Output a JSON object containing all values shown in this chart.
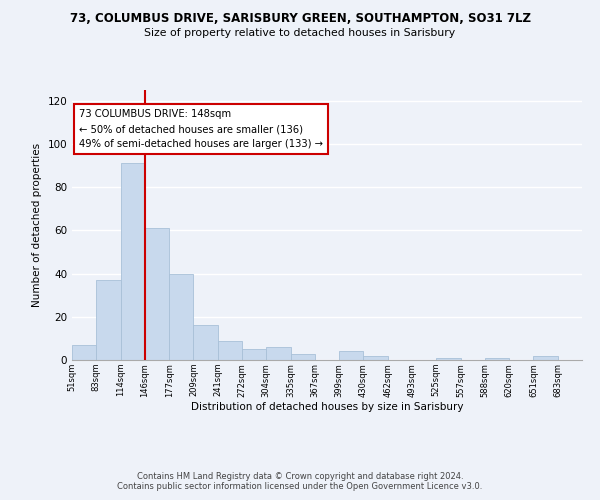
{
  "title": "73, COLUMBUS DRIVE, SARISBURY GREEN, SOUTHAMPTON, SO31 7LZ",
  "subtitle": "Size of property relative to detached houses in Sarisbury",
  "xlabel": "Distribution of detached houses by size in Sarisbury",
  "ylabel": "Number of detached properties",
  "bar_color": "#c8d9ed",
  "bar_edge_color": "#a8c0d8",
  "vline_color": "#cc0000",
  "vline_x": 3,
  "annotation_title": "73 COLUMBUS DRIVE: 148sqm",
  "annotation_line1": "← 50% of detached houses are smaller (136)",
  "annotation_line2": "49% of semi-detached houses are larger (133) →",
  "annotation_box_color": "#ffffff",
  "annotation_box_edge": "#cc0000",
  "bin_labels": [
    "51sqm",
    "83sqm",
    "114sqm",
    "146sqm",
    "177sqm",
    "209sqm",
    "241sqm",
    "272sqm",
    "304sqm",
    "335sqm",
    "367sqm",
    "399sqm",
    "430sqm",
    "462sqm",
    "493sqm",
    "525sqm",
    "557sqm",
    "588sqm",
    "620sqm",
    "651sqm",
    "683sqm"
  ],
  "bar_heights": [
    7,
    37,
    91,
    61,
    40,
    16,
    9,
    5,
    6,
    3,
    0,
    4,
    2,
    0,
    0,
    1,
    0,
    1,
    0,
    2,
    0
  ],
  "ylim": [
    0,
    125
  ],
  "yticks": [
    0,
    20,
    40,
    60,
    80,
    100,
    120
  ],
  "footer1": "Contains HM Land Registry data © Crown copyright and database right 2024.",
  "footer2": "Contains public sector information licensed under the Open Government Licence v3.0.",
  "bg_color": "#eef2f9",
  "plot_bg_color": "#eef2f9",
  "grid_color": "#ffffff"
}
